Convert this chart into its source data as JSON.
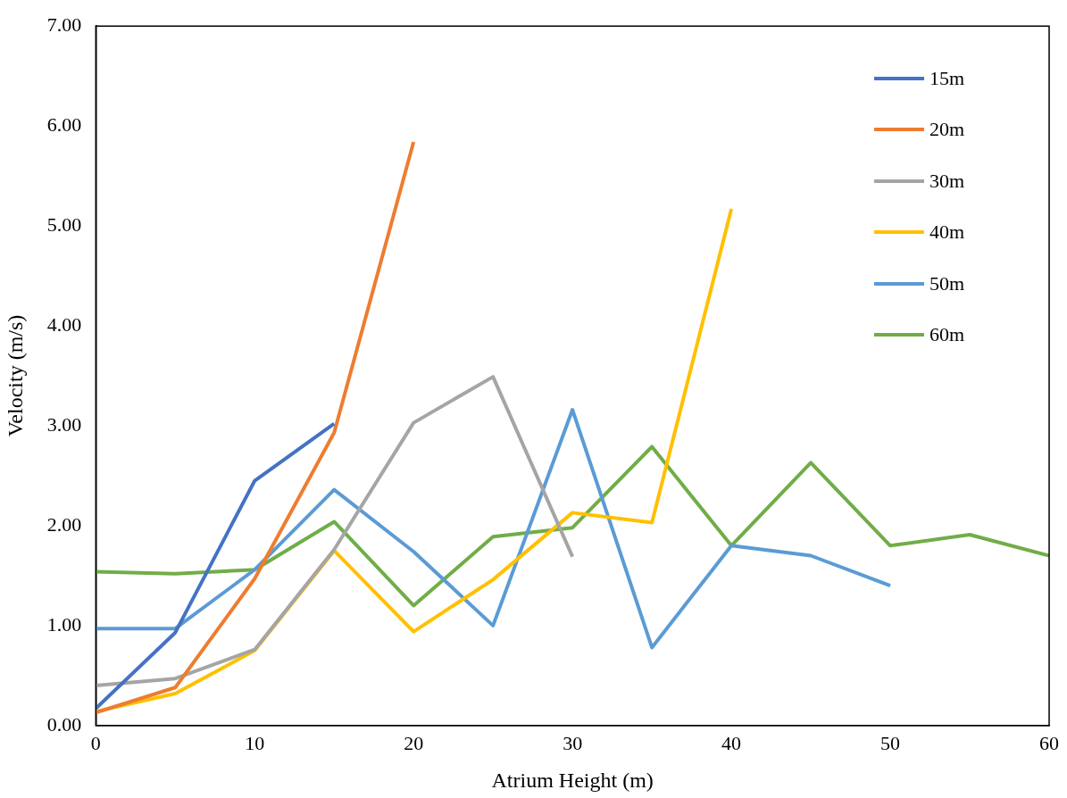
{
  "chart_data": {
    "type": "line",
    "xlabel": "Atrium Height (m)",
    "ylabel": "Velocity (m/s)",
    "xlim": [
      0,
      60
    ],
    "xticks": [
      0,
      10,
      20,
      30,
      40,
      50,
      60
    ],
    "ylim": [
      0,
      7
    ],
    "yticks": [
      {
        "value": 0,
        "label": "0.00"
      },
      {
        "value": 1,
        "label": "1.00"
      },
      {
        "value": 2,
        "label": "2.00"
      },
      {
        "value": 3,
        "label": "3.00"
      },
      {
        "value": 4,
        "label": "4.00"
      },
      {
        "value": 5,
        "label": "5.00"
      },
      {
        "value": 6,
        "label": "6.00"
      },
      {
        "value": 7,
        "label": "7.00"
      }
    ],
    "grid": false,
    "legend": "top right",
    "marker": "none",
    "line_style": "solid",
    "series": [
      {
        "name": "15m",
        "color": "#4472c4",
        "x": [
          0,
          5,
          10,
          15
        ],
        "values": [
          0.17,
          0.93,
          2.45,
          3.02
        ]
      },
      {
        "name": "20m",
        "color": "#ed7d31",
        "x": [
          0,
          5,
          10,
          15,
          20
        ],
        "values": [
          0.13,
          0.38,
          1.47,
          2.93,
          5.84
        ]
      },
      {
        "name": "30m",
        "color": "#a5a5a5",
        "x": [
          0,
          5,
          10,
          15,
          20,
          25,
          30
        ],
        "values": [
          0.4,
          0.47,
          0.76,
          1.76,
          3.03,
          3.49,
          1.69
        ]
      },
      {
        "name": "40m",
        "color": "#ffc000",
        "x": [
          0,
          5,
          10,
          15,
          20,
          25,
          30,
          35,
          40
        ],
        "values": [
          0.14,
          0.32,
          0.75,
          1.75,
          0.94,
          1.46,
          2.13,
          2.03,
          5.17
        ]
      },
      {
        "name": "50m",
        "color": "#5b9bd5",
        "x": [
          0,
          5,
          10,
          15,
          20,
          25,
          30,
          35,
          40,
          45,
          50
        ],
        "values": [
          0.97,
          0.97,
          1.56,
          2.36,
          1.74,
          1.0,
          3.16,
          0.78,
          1.8,
          1.7,
          1.4
        ]
      },
      {
        "name": "60m",
        "color": "#70ad47",
        "x": [
          0,
          5,
          10,
          15,
          20,
          25,
          30,
          35,
          40,
          45,
          50,
          55,
          60
        ],
        "values": [
          1.54,
          1.52,
          1.56,
          2.04,
          1.2,
          1.89,
          1.98,
          2.79,
          1.8,
          2.63,
          1.8,
          1.91,
          1.7
        ]
      }
    ]
  }
}
